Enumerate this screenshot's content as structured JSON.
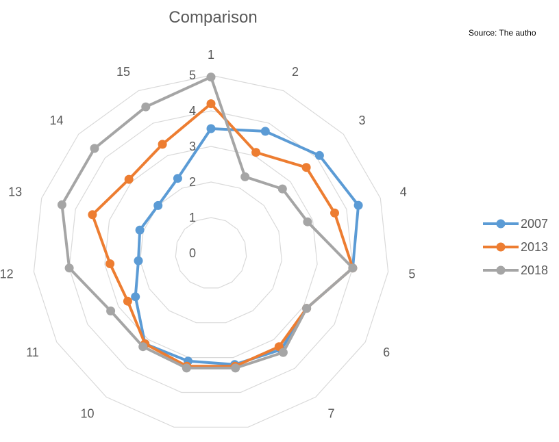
{
  "chart_data": {
    "type": "radar",
    "title": "Comparison",
    "source_note": "Source: The autho",
    "categories": [
      "1",
      "2",
      "3",
      "4",
      "5",
      "6",
      "7",
      "8",
      "9",
      "10",
      "11",
      "12",
      "13",
      "14",
      "15"
    ],
    "rlim": [
      0,
      5
    ],
    "ticks": [
      0,
      1,
      2,
      3,
      4,
      5
    ],
    "grid": true,
    "legend_position": "right",
    "series": [
      {
        "name": "2007",
        "color": "#5B9BD5",
        "values": [
          3.5,
          3.75,
          4.1,
          4.35,
          4.0,
          3.1,
          3.35,
          3.2,
          3.1,
          3.15,
          2.45,
          2.05,
          2.1,
          2.0,
          2.3
        ]
      },
      {
        "name": "2013",
        "color": "#ED7D31",
        "values": [
          4.2,
          3.1,
          3.6,
          3.65,
          4.0,
          3.1,
          3.25,
          3.25,
          3.25,
          3.15,
          2.7,
          2.85,
          3.5,
          3.1,
          3.35
        ]
      },
      {
        "name": "2018",
        "color": "#A5A5A5",
        "values": [
          4.95,
          2.35,
          2.7,
          2.85,
          4.0,
          3.1,
          3.45,
          3.3,
          3.3,
          3.25,
          3.25,
          4.0,
          4.4,
          4.4,
          4.5
        ]
      }
    ]
  }
}
